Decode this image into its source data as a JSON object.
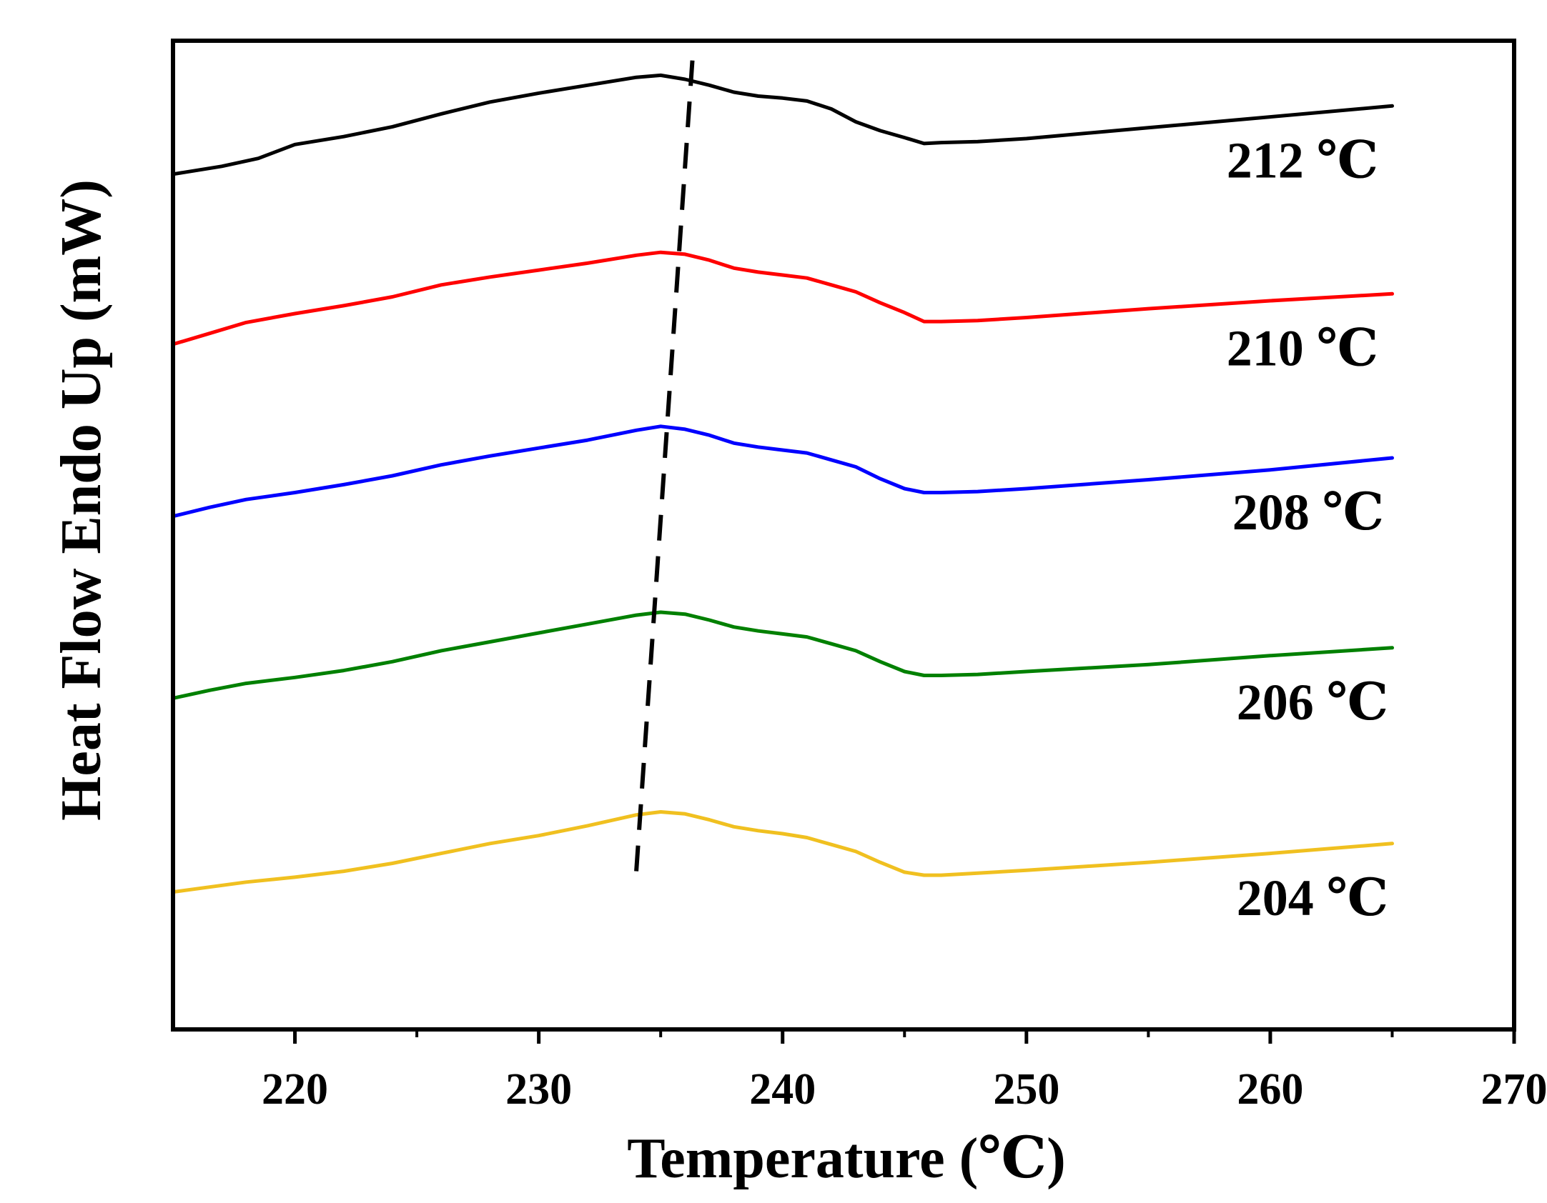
{
  "chart_data": {
    "type": "line",
    "title": "",
    "xlabel": "Temperature (℃)",
    "ylabel": "Heat Flow Endo Up (mW)",
    "xlim": [
      215,
      270
    ],
    "ylim": [
      0,
      100
    ],
    "x_ticks": [
      220,
      230,
      240,
      250,
      260,
      270
    ],
    "x_tick_labels": [
      "220",
      "230",
      "240",
      "250",
      "260",
      "270"
    ],
    "y_ticks_shown": false,
    "grid": false,
    "legend": "inline labels at right end of each curve",
    "series": [
      {
        "name": "212 ℃",
        "color": "#000000",
        "points": [
          [
            215,
            86.5
          ],
          [
            217,
            87.3
          ],
          [
            218.5,
            88.1
          ],
          [
            220,
            89.5
          ],
          [
            222,
            90.3
          ],
          [
            224,
            91.3
          ],
          [
            226,
            92.6
          ],
          [
            228,
            93.8
          ],
          [
            230,
            94.7
          ],
          [
            232,
            95.5
          ],
          [
            234,
            96.3
          ],
          [
            235,
            96.5
          ],
          [
            236,
            96.1
          ],
          [
            237,
            95.5
          ],
          [
            238,
            94.8
          ],
          [
            239,
            94.4
          ],
          [
            240,
            94.2
          ],
          [
            241,
            93.9
          ],
          [
            242,
            93.1
          ],
          [
            243,
            91.8
          ],
          [
            244,
            90.9
          ],
          [
            245,
            90.2
          ],
          [
            245.8,
            89.6
          ],
          [
            246.5,
            89.7
          ],
          [
            248,
            89.8
          ],
          [
            250,
            90.1
          ],
          [
            255,
            91.2
          ],
          [
            260,
            92.3
          ],
          [
            265,
            93.4
          ]
        ]
      },
      {
        "name": "210 ℃",
        "color": "#ff0000",
        "points": [
          [
            215,
            69.3
          ],
          [
            216.5,
            70.4
          ],
          [
            218,
            71.5
          ],
          [
            220,
            72.4
          ],
          [
            222,
            73.2
          ],
          [
            224,
            74.1
          ],
          [
            226,
            75.3
          ],
          [
            228,
            76.1
          ],
          [
            230,
            76.8
          ],
          [
            232,
            77.5
          ],
          [
            234,
            78.3
          ],
          [
            235,
            78.6
          ],
          [
            236,
            78.4
          ],
          [
            237,
            77.8
          ],
          [
            238,
            77.0
          ],
          [
            239,
            76.6
          ],
          [
            240,
            76.3
          ],
          [
            241,
            76.0
          ],
          [
            242,
            75.3
          ],
          [
            243,
            74.6
          ],
          [
            244,
            73.5
          ],
          [
            245,
            72.5
          ],
          [
            245.8,
            71.6
          ],
          [
            246.5,
            71.6
          ],
          [
            248,
            71.7
          ],
          [
            250,
            72.0
          ],
          [
            255,
            72.9
          ],
          [
            260,
            73.7
          ],
          [
            265,
            74.4
          ]
        ]
      },
      {
        "name": "208 ℃",
        "color": "#0000ff",
        "points": [
          [
            215,
            51.9
          ],
          [
            216.5,
            52.8
          ],
          [
            218,
            53.6
          ],
          [
            220,
            54.3
          ],
          [
            222,
            55.1
          ],
          [
            224,
            56.0
          ],
          [
            226,
            57.1
          ],
          [
            228,
            58.0
          ],
          [
            230,
            58.8
          ],
          [
            232,
            59.6
          ],
          [
            234,
            60.6
          ],
          [
            235,
            61.0
          ],
          [
            236,
            60.7
          ],
          [
            237,
            60.1
          ],
          [
            238,
            59.3
          ],
          [
            239,
            58.9
          ],
          [
            240,
            58.6
          ],
          [
            241,
            58.3
          ],
          [
            242,
            57.6
          ],
          [
            243,
            56.9
          ],
          [
            244,
            55.7
          ],
          [
            245,
            54.7
          ],
          [
            245.8,
            54.3
          ],
          [
            246.5,
            54.3
          ],
          [
            248,
            54.4
          ],
          [
            250,
            54.7
          ],
          [
            255,
            55.6
          ],
          [
            260,
            56.6
          ],
          [
            265,
            57.8
          ]
        ]
      },
      {
        "name": "206 ℃",
        "color": "#008000",
        "points": [
          [
            215,
            33.5
          ],
          [
            216.5,
            34.3
          ],
          [
            218,
            35.0
          ],
          [
            220,
            35.6
          ],
          [
            222,
            36.3
          ],
          [
            224,
            37.2
          ],
          [
            226,
            38.3
          ],
          [
            228,
            39.2
          ],
          [
            230,
            40.1
          ],
          [
            232,
            41.0
          ],
          [
            234,
            41.9
          ],
          [
            235,
            42.2
          ],
          [
            236,
            42.0
          ],
          [
            237,
            41.4
          ],
          [
            238,
            40.7
          ],
          [
            239,
            40.3
          ],
          [
            240,
            40.0
          ],
          [
            241,
            39.7
          ],
          [
            242,
            39.0
          ],
          [
            243,
            38.3
          ],
          [
            244,
            37.2
          ],
          [
            245,
            36.2
          ],
          [
            245.8,
            35.8
          ],
          [
            246.5,
            35.8
          ],
          [
            248,
            35.9
          ],
          [
            250,
            36.2
          ],
          [
            255,
            36.9
          ],
          [
            260,
            37.8
          ],
          [
            265,
            38.6
          ]
        ]
      },
      {
        "name": "204 ℃",
        "color": "#f0c020",
        "points": [
          [
            215,
            13.9
          ],
          [
            216.5,
            14.4
          ],
          [
            218,
            14.9
          ],
          [
            220,
            15.4
          ],
          [
            222,
            16.0
          ],
          [
            224,
            16.8
          ],
          [
            226,
            17.8
          ],
          [
            228,
            18.8
          ],
          [
            230,
            19.6
          ],
          [
            232,
            20.6
          ],
          [
            234,
            21.7
          ],
          [
            235,
            22.0
          ],
          [
            236,
            21.8
          ],
          [
            237,
            21.2
          ],
          [
            238,
            20.5
          ],
          [
            239,
            20.1
          ],
          [
            240,
            19.8
          ],
          [
            241,
            19.4
          ],
          [
            242,
            18.7
          ],
          [
            243,
            18.0
          ],
          [
            244,
            16.9
          ],
          [
            245,
            15.9
          ],
          [
            245.8,
            15.6
          ],
          [
            246.5,
            15.6
          ],
          [
            248,
            15.8
          ],
          [
            250,
            16.1
          ],
          [
            255,
            16.9
          ],
          [
            260,
            17.8
          ],
          [
            265,
            18.8
          ]
        ]
      }
    ],
    "annotations": [
      {
        "type": "dashed-line",
        "description": "peak shift guide",
        "from": [
          234.0,
          16.0
        ],
        "to": [
          236.3,
          98.0
        ]
      }
    ]
  }
}
